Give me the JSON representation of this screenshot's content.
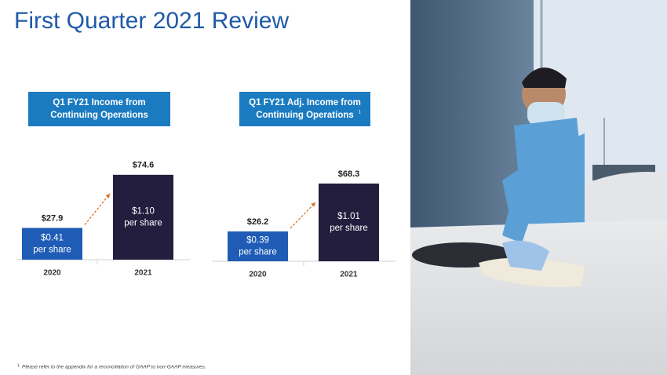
{
  "title": "First Quarter 2021 Review",
  "footnote": {
    "marker": "1",
    "text": "Please refer to the appendix for a reconciliation of GAAP to non-GAAP measures."
  },
  "chart_data": [
    {
      "type": "bar",
      "title_lines": [
        "Q1 FY21 Income from",
        "Continuing Operations"
      ],
      "categories": [
        "2020",
        "2021"
      ],
      "values": [
        27.9,
        74.6
      ],
      "value_labels": [
        "$27.9",
        "$74.6"
      ],
      "bar_texts": [
        [
          "$0.41",
          "per share"
        ],
        [
          "$1.10",
          "per share"
        ]
      ],
      "colors": [
        "#1f5cb6",
        "#231d3e"
      ],
      "header_color": "#1b7bc0",
      "arrow_color": "#d9762b"
    },
    {
      "type": "bar",
      "title_lines": [
        "Q1 FY21 Adj. Income from",
        "Continuing Operations"
      ],
      "title_note": "1",
      "categories": [
        "2020",
        "2021"
      ],
      "values": [
        26.2,
        68.3
      ],
      "value_labels": [
        "$26.2",
        "$68.3"
      ],
      "bar_texts": [
        [
          "$0.39",
          "per share"
        ],
        [
          "$1.01",
          "per share"
        ]
      ],
      "colors": [
        "#1f5cb6",
        "#231d3e"
      ],
      "header_color": "#1b7bc0",
      "arrow_color": "#d9762b"
    }
  ]
}
